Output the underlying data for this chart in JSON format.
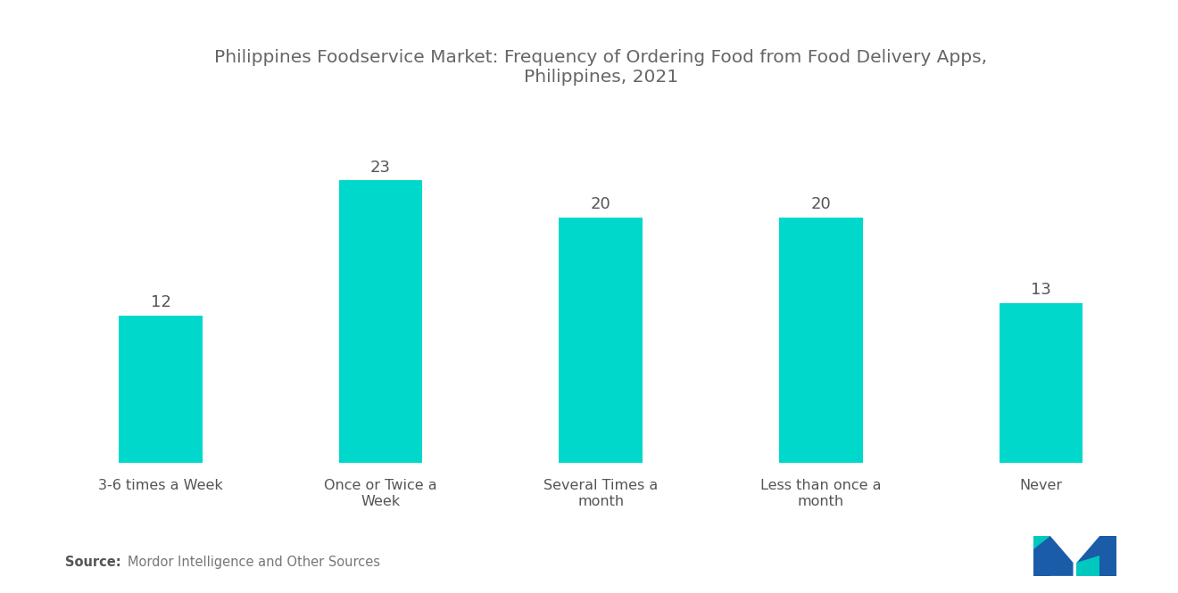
{
  "title_line1": "Philippines Foodservice Market: Frequency of Ordering Food from Food Delivery Apps,",
  "title_line2": "Philippines, 2021",
  "categories": [
    "3-6 times a Week",
    "Once or Twice a\nWeek",
    "Several Times a\nmonth",
    "Less than once a\nmonth",
    "Never"
  ],
  "values": [
    12,
    23,
    20,
    20,
    13
  ],
  "bar_color": "#00D8CC",
  "background_color": "#ffffff",
  "title_color": "#666666",
  "label_color": "#555555",
  "value_color": "#555555",
  "source_text": "Mordor Intelligence and Other Sources",
  "source_label": "Source:",
  "ylim": [
    0,
    29
  ],
  "bar_width": 0.38,
  "title_fontsize": 14.5,
  "label_fontsize": 11.5,
  "value_fontsize": 13
}
